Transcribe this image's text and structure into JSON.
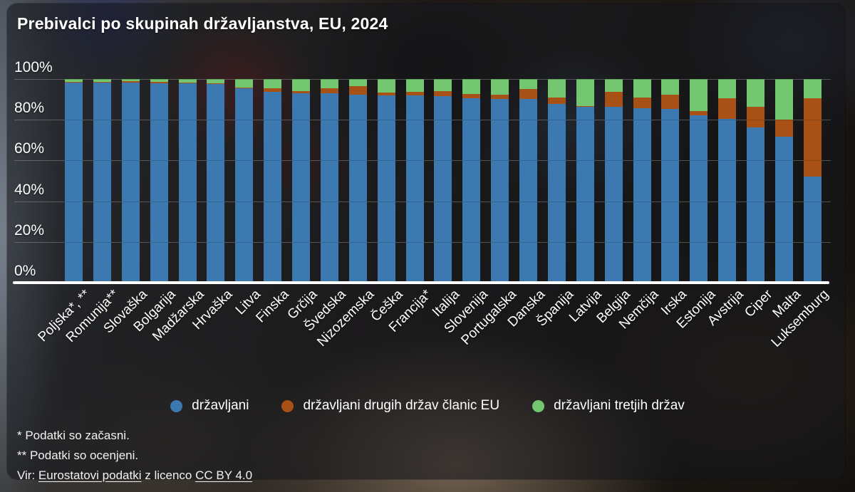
{
  "title": "Prebivalci po skupinah državljanstva, EU, 2024",
  "colors": {
    "citizens": "#3d79b1",
    "other_eu": "#a85117",
    "third": "#74c771"
  },
  "y_axis": {
    "tick_labels": [
      "100%",
      "80%",
      "60%",
      "40%",
      "20%",
      "0%"
    ],
    "tick_values": [
      100,
      80,
      60,
      40,
      20,
      0
    ]
  },
  "legend": {
    "items": [
      {
        "key": "citizens",
        "label": "državljani"
      },
      {
        "key": "other_eu",
        "label": "državljani drugih držav članic EU"
      },
      {
        "key": "third",
        "label": "državljani tretjih držav"
      }
    ]
  },
  "footnotes": {
    "line1": "* Podatki so začasni.",
    "line2": "** Podatki so ocenjeni."
  },
  "source": {
    "prefix": "Vir: ",
    "link1": "Eurostatovi podatki",
    "middle": " z licenco ",
    "link2": "CC BY 4.0"
  },
  "chart_data": {
    "type": "bar",
    "stacked": true,
    "unit": "%",
    "title": "Prebivalci po skupinah državljanstva, EU, 2024",
    "ylim": [
      0,
      100
    ],
    "yticks": [
      0,
      20,
      40,
      60,
      80,
      100
    ],
    "grid": true,
    "legend_position": "bottom",
    "categories": [
      "Poljska*, **",
      "Romunija**",
      "Slovaška",
      "Bolgarija",
      "Madžarska",
      "Hrvaška",
      "Litva",
      "Finska",
      "Grčija",
      "Švedska",
      "Nizozemska",
      "Češka",
      "Francija*",
      "Italija",
      "Slovenija",
      "Portugalska",
      "Danska",
      "Španija",
      "Latvija",
      "Belgija",
      "Nemčija",
      "Irska",
      "Estonija",
      "Avstrija",
      "Ciper",
      "Malta",
      "Luksemburg"
    ],
    "series": [
      {
        "name": "državljani",
        "color": "#3d79b1",
        "values": [
          98.4,
          98.4,
          98.3,
          98.0,
          97.8,
          97.4,
          95.6,
          93.8,
          93.0,
          92.9,
          92.3,
          92.0,
          91.9,
          91.6,
          90.6,
          90.2,
          90.2,
          87.8,
          86.4,
          86.4,
          85.7,
          85.3,
          82.2,
          80.5,
          76.2,
          71.8,
          52.1
        ]
      },
      {
        "name": "državljani drugih držav članic EU",
        "color": "#a85117",
        "values": [
          0.2,
          0.3,
          0.5,
          0.5,
          0.5,
          0.4,
          0.2,
          1.5,
          1.1,
          2.5,
          4.1,
          1.5,
          1.7,
          2.5,
          2.2,
          2.1,
          4.9,
          3.2,
          0.4,
          7.3,
          5.2,
          7.0,
          1.9,
          9.9,
          10.1,
          8.2,
          38.4
        ]
      },
      {
        "name": "državljani tretjih držav",
        "color": "#74c771",
        "values": [
          1.4,
          1.3,
          1.2,
          1.5,
          1.7,
          2.2,
          4.2,
          4.7,
          5.9,
          4.6,
          3.6,
          6.5,
          6.4,
          5.9,
          7.2,
          7.7,
          4.9,
          9.0,
          13.2,
          6.3,
          9.1,
          7.7,
          15.9,
          9.6,
          13.7,
          20.0,
          9.5
        ]
      }
    ]
  }
}
